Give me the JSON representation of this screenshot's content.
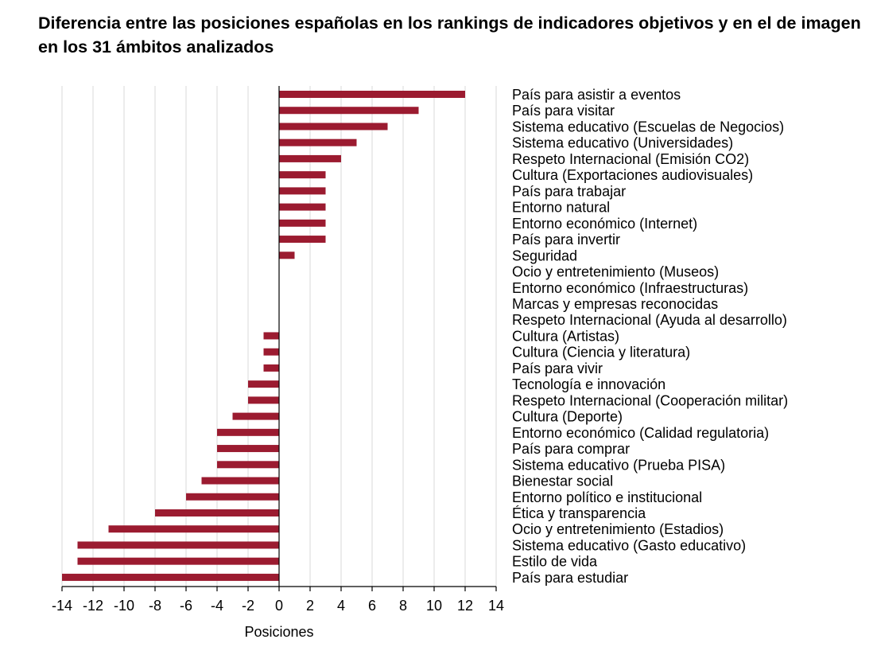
{
  "chart_data": {
    "type": "bar",
    "orientation": "horizontal",
    "title": "Diferencia entre las posiciones españolas en los rankings de indicadores objetivos y en el de imagen en los 31 ámbitos analizados",
    "xlabel": "Posiciones",
    "ylabel": "",
    "xlim": [
      -14,
      14
    ],
    "xticks": [
      -14,
      -12,
      -10,
      -8,
      -6,
      -4,
      -2,
      0,
      2,
      4,
      6,
      8,
      10,
      12,
      14
    ],
    "grid": true,
    "bar_color": "#9b1b30",
    "categories": [
      "País para asistir a eventos",
      "País para visitar",
      "Sistema educativo (Escuelas de Negocios)",
      "Sistema educativo (Universidades)",
      "Respeto Internacional (Emisión CO2)",
      "Cultura (Exportaciones audiovisuales)",
      "País para trabajar",
      "Entorno natural",
      "Entorno económico (Internet)",
      "País para invertir",
      "Seguridad",
      "Ocio y entretenimiento (Museos)",
      "Entorno económico (Infraestructuras)",
      "Marcas y empresas reconocidas",
      "Respeto Internacional (Ayuda al desarrollo)",
      "Cultura (Artistas)",
      "Cultura (Ciencia y literatura)",
      "País para vivir",
      "Tecnología e innovación",
      "Respeto Internacional (Cooperación militar)",
      "Cultura (Deporte)",
      "Entorno económico (Calidad regulatoria)",
      "País para comprar",
      "Sistema educativo (Prueba PISA)",
      "Bienestar social",
      "Entorno político e institucional",
      "Ética y transparencia",
      "Ocio y entretenimiento (Estadios)",
      "Sistema educativo (Gasto educativo)",
      "Estilo de vida",
      "País para estudiar"
    ],
    "values": [
      12,
      9,
      7,
      5,
      4,
      3,
      3,
      3,
      3,
      3,
      1,
      0,
      0,
      0,
      0,
      -1,
      -1,
      -1,
      -2,
      -2,
      -3,
      -4,
      -4,
      -4,
      -5,
      -6,
      -8,
      -11,
      -13,
      -13,
      -14
    ]
  }
}
